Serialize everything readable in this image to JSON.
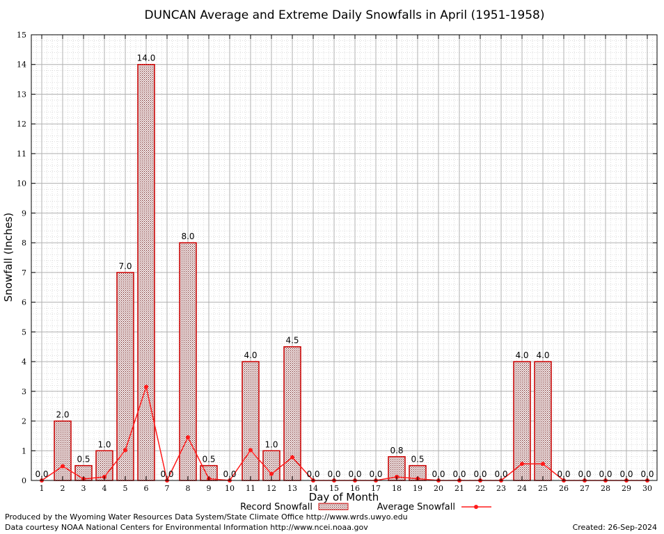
{
  "footer": {
    "producer": "Produced by the Wyoming Water Resources Data System/State Climate Office http://www.wrds.uwyo.edu",
    "source": "Data courtesy NOAA National Centers for Environmental Information http://www.ncei.noaa.gov",
    "created": "Created: 26-Sep-2024"
  },
  "colors": {
    "bar_stroke": "#cc0000",
    "bar_pattern_dark": "#6b1a1a",
    "line": "#ff1a1a",
    "grid_major": "#b0b0b0",
    "grid_minor": "#c8c8c8",
    "axis": "#000000"
  },
  "chart_data": {
    "type": "bar",
    "title": "DUNCAN Average and Extreme Daily Snowfalls in April (1951-1958)",
    "xlabel": "Day of Month",
    "ylabel": "Snowfall (Inches)",
    "ylim": [
      0,
      15
    ],
    "yticks": [
      "0",
      "1",
      "2",
      "3",
      "4",
      "5",
      "6",
      "7",
      "8",
      "9",
      "10",
      "11",
      "12",
      "13",
      "14",
      "15"
    ],
    "categories": [
      "1",
      "2",
      "3",
      "4",
      "5",
      "6",
      "7",
      "8",
      "9",
      "10",
      "11",
      "12",
      "13",
      "14",
      "15",
      "16",
      "17",
      "18",
      "19",
      "20",
      "21",
      "22",
      "23",
      "24",
      "25",
      "26",
      "27",
      "28",
      "29",
      "30"
    ],
    "grid": true,
    "legend_position": "bottom",
    "series": [
      {
        "name": "Record Snowfall",
        "type": "bar",
        "values": [
          0.0,
          2.0,
          0.5,
          1.0,
          7.0,
          14.0,
          0.0,
          8.0,
          0.5,
          0.0,
          4.0,
          1.0,
          4.5,
          0.0,
          0.0,
          0.0,
          0.0,
          0.8,
          0.5,
          0.0,
          0.0,
          0.0,
          0.0,
          4.0,
          4.0,
          0.0,
          0.0,
          0.0,
          0.0,
          0.0
        ],
        "data_labels": [
          "0.0",
          "2.0",
          "0.5",
          "1.0",
          "7.0",
          "14.0",
          "0.0",
          "8.0",
          "0.5",
          "0.0",
          "4.0",
          "1.0",
          "4.5",
          "0.0",
          "0.0",
          "0.0",
          "0.0",
          "0.8",
          "0.5",
          "0.0",
          "0.0",
          "0.0",
          "0.0",
          "4.0",
          "4.0",
          "0.0",
          "0.0",
          "0.0",
          "0.0",
          "0.0"
        ]
      },
      {
        "name": "Average Snowfall",
        "type": "line",
        "values": [
          0.0,
          0.48,
          0.05,
          0.12,
          1.02,
          3.15,
          0.0,
          1.45,
          0.06,
          0.0,
          1.02,
          0.22,
          0.78,
          0.0,
          0.0,
          0.0,
          0.0,
          0.12,
          0.06,
          0.0,
          0.0,
          0.0,
          0.0,
          0.56,
          0.56,
          0.0,
          0.0,
          0.0,
          0.0,
          0.0
        ]
      }
    ]
  }
}
